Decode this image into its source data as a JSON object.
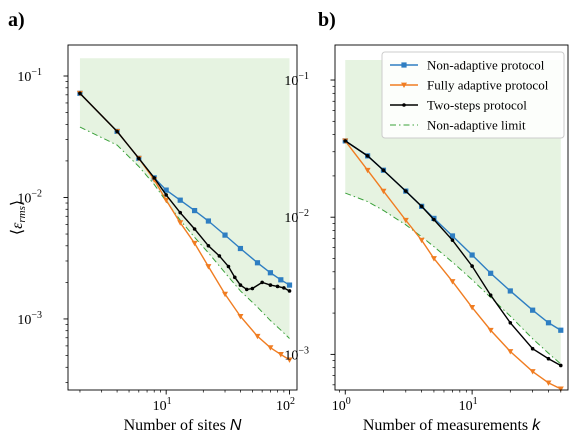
{
  "colors": {
    "non_adaptive": "#2e7ec2",
    "fully_adaptive": "#f07d22",
    "two_steps": "#000000",
    "limit": "#3aa13a",
    "fill": "#e6f3e1"
  },
  "chart_data": [
    {
      "panel": "a)",
      "type": "line",
      "xscale": "log",
      "yscale": "log",
      "xlabel_pre": "Number of sites ",
      "xlabel_var": "N",
      "ylabel": "⟨ε_rms⟩",
      "ylabel_parts": {
        "open": "⟨",
        "eps": "ε",
        "sub": "rms",
        "close": "⟩"
      },
      "xlim": [
        1.6,
        115
      ],
      "ylim": [
        0.00026,
        0.18
      ],
      "xticks": [
        {
          "value": 10,
          "label": "10",
          "exp": "1"
        },
        {
          "value": 100,
          "label": "10",
          "exp": "2"
        }
      ],
      "yticks": [
        {
          "value": 0.1,
          "label": "10",
          "exp": "−1"
        },
        {
          "value": 0.01,
          "label": "10",
          "exp": "−2"
        },
        {
          "value": 0.001,
          "label": "10",
          "exp": "−3"
        }
      ],
      "fill_region": {
        "x": [
          2,
          100
        ],
        "y_top": 0.14
      },
      "series": [
        {
          "key": "non_adaptive",
          "x": [
            2,
            4,
            6,
            8,
            10,
            13,
            17,
            22,
            30,
            40,
            55,
            70,
            85,
            100
          ],
          "y": [
            0.072,
            0.035,
            0.021,
            0.0145,
            0.0115,
            0.0095,
            0.0078,
            0.0064,
            0.0049,
            0.0038,
            0.0029,
            0.0024,
            0.0021,
            0.0019
          ]
        },
        {
          "key": "fully_adaptive",
          "x": [
            2,
            4,
            6,
            8,
            10,
            13,
            17,
            22,
            30,
            40,
            55,
            70,
            85,
            100
          ],
          "y": [
            0.072,
            0.035,
            0.021,
            0.014,
            0.0095,
            0.0062,
            0.0042,
            0.0027,
            0.0016,
            0.00105,
            0.00072,
            0.00058,
            0.00051,
            0.00046
          ]
        },
        {
          "key": "two_steps",
          "x": [
            2,
            4,
            6,
            8,
            10,
            13,
            17,
            22,
            27,
            32,
            36,
            40,
            45,
            50,
            60,
            70,
            80,
            90,
            100
          ],
          "y": [
            0.072,
            0.035,
            0.021,
            0.0145,
            0.0105,
            0.0075,
            0.0055,
            0.004,
            0.0033,
            0.0027,
            0.0022,
            0.0019,
            0.00175,
            0.00178,
            0.002,
            0.0019,
            0.00185,
            0.0018,
            0.0017
          ]
        },
        {
          "key": "limit",
          "x": [
            2,
            4,
            6,
            8,
            10,
            13,
            17,
            22,
            30,
            40,
            55,
            70,
            85,
            100
          ],
          "y": [
            0.038,
            0.027,
            0.018,
            0.0128,
            0.0093,
            0.0065,
            0.0047,
            0.0035,
            0.0024,
            0.0017,
            0.00125,
            0.00097,
            0.00081,
            0.00069
          ]
        }
      ]
    },
    {
      "panel": "b)",
      "type": "line",
      "xscale": "log",
      "yscale": "log",
      "xlabel_pre": "Number of measurements ",
      "xlabel_var": "k",
      "xlim": [
        0.83,
        57
      ],
      "ylim": [
        0.00055,
        0.18
      ],
      "xticks": [
        {
          "value": 1,
          "label": "10",
          "exp": "0"
        },
        {
          "value": 10,
          "label": "10",
          "exp": "1"
        }
      ],
      "yticks": [
        {
          "value": 0.1,
          "label": "10",
          "exp": "−1"
        },
        {
          "value": 0.01,
          "label": "10",
          "exp": "−2"
        },
        {
          "value": 0.001,
          "label": "10",
          "exp": "−3"
        }
      ],
      "fill_region": {
        "x": [
          1,
          50
        ],
        "y_top": 0.14
      },
      "series": [
        {
          "key": "non_adaptive",
          "x": [
            1,
            1.5,
            2,
            3,
            4,
            5,
            7,
            10,
            14,
            20,
            30,
            40,
            50
          ],
          "y": [
            0.036,
            0.028,
            0.022,
            0.0155,
            0.012,
            0.0098,
            0.0073,
            0.0053,
            0.0039,
            0.0029,
            0.0021,
            0.0017,
            0.0015
          ]
        },
        {
          "key": "fully_adaptive",
          "x": [
            1,
            1.5,
            2,
            3,
            4,
            5,
            7,
            10,
            14,
            20,
            30,
            40,
            50
          ],
          "y": [
            0.036,
            0.022,
            0.0155,
            0.0095,
            0.0068,
            0.005,
            0.0034,
            0.0022,
            0.0015,
            0.00105,
            0.00075,
            0.00062,
            0.00056
          ]
        },
        {
          "key": "two_steps",
          "x": [
            1,
            1.5,
            2,
            3,
            4,
            5,
            7,
            10,
            14,
            20,
            30,
            40,
            50
          ],
          "y": [
            0.036,
            0.028,
            0.022,
            0.0155,
            0.012,
            0.0096,
            0.0068,
            0.0044,
            0.0027,
            0.0017,
            0.0011,
            0.00093,
            0.00083
          ]
        },
        {
          "key": "limit",
          "x": [
            1,
            1.5,
            2,
            3,
            4,
            5,
            7,
            10,
            14,
            20,
            30,
            40,
            50
          ],
          "y": [
            0.015,
            0.013,
            0.0112,
            0.0088,
            0.0072,
            0.0061,
            0.0047,
            0.0035,
            0.0026,
            0.0019,
            0.0013,
            0.00102,
            0.00085
          ]
        }
      ]
    }
  ],
  "legend": {
    "placement": "top-right of panel b",
    "entries": [
      {
        "key": "non_adaptive",
        "label": "Non-adaptive protocol"
      },
      {
        "key": "fully_adaptive",
        "label": "Fully adaptive protocol"
      },
      {
        "key": "two_steps",
        "label": "Two-steps protocol"
      },
      {
        "key": "limit",
        "label": "Non-adaptive limit"
      }
    ]
  }
}
